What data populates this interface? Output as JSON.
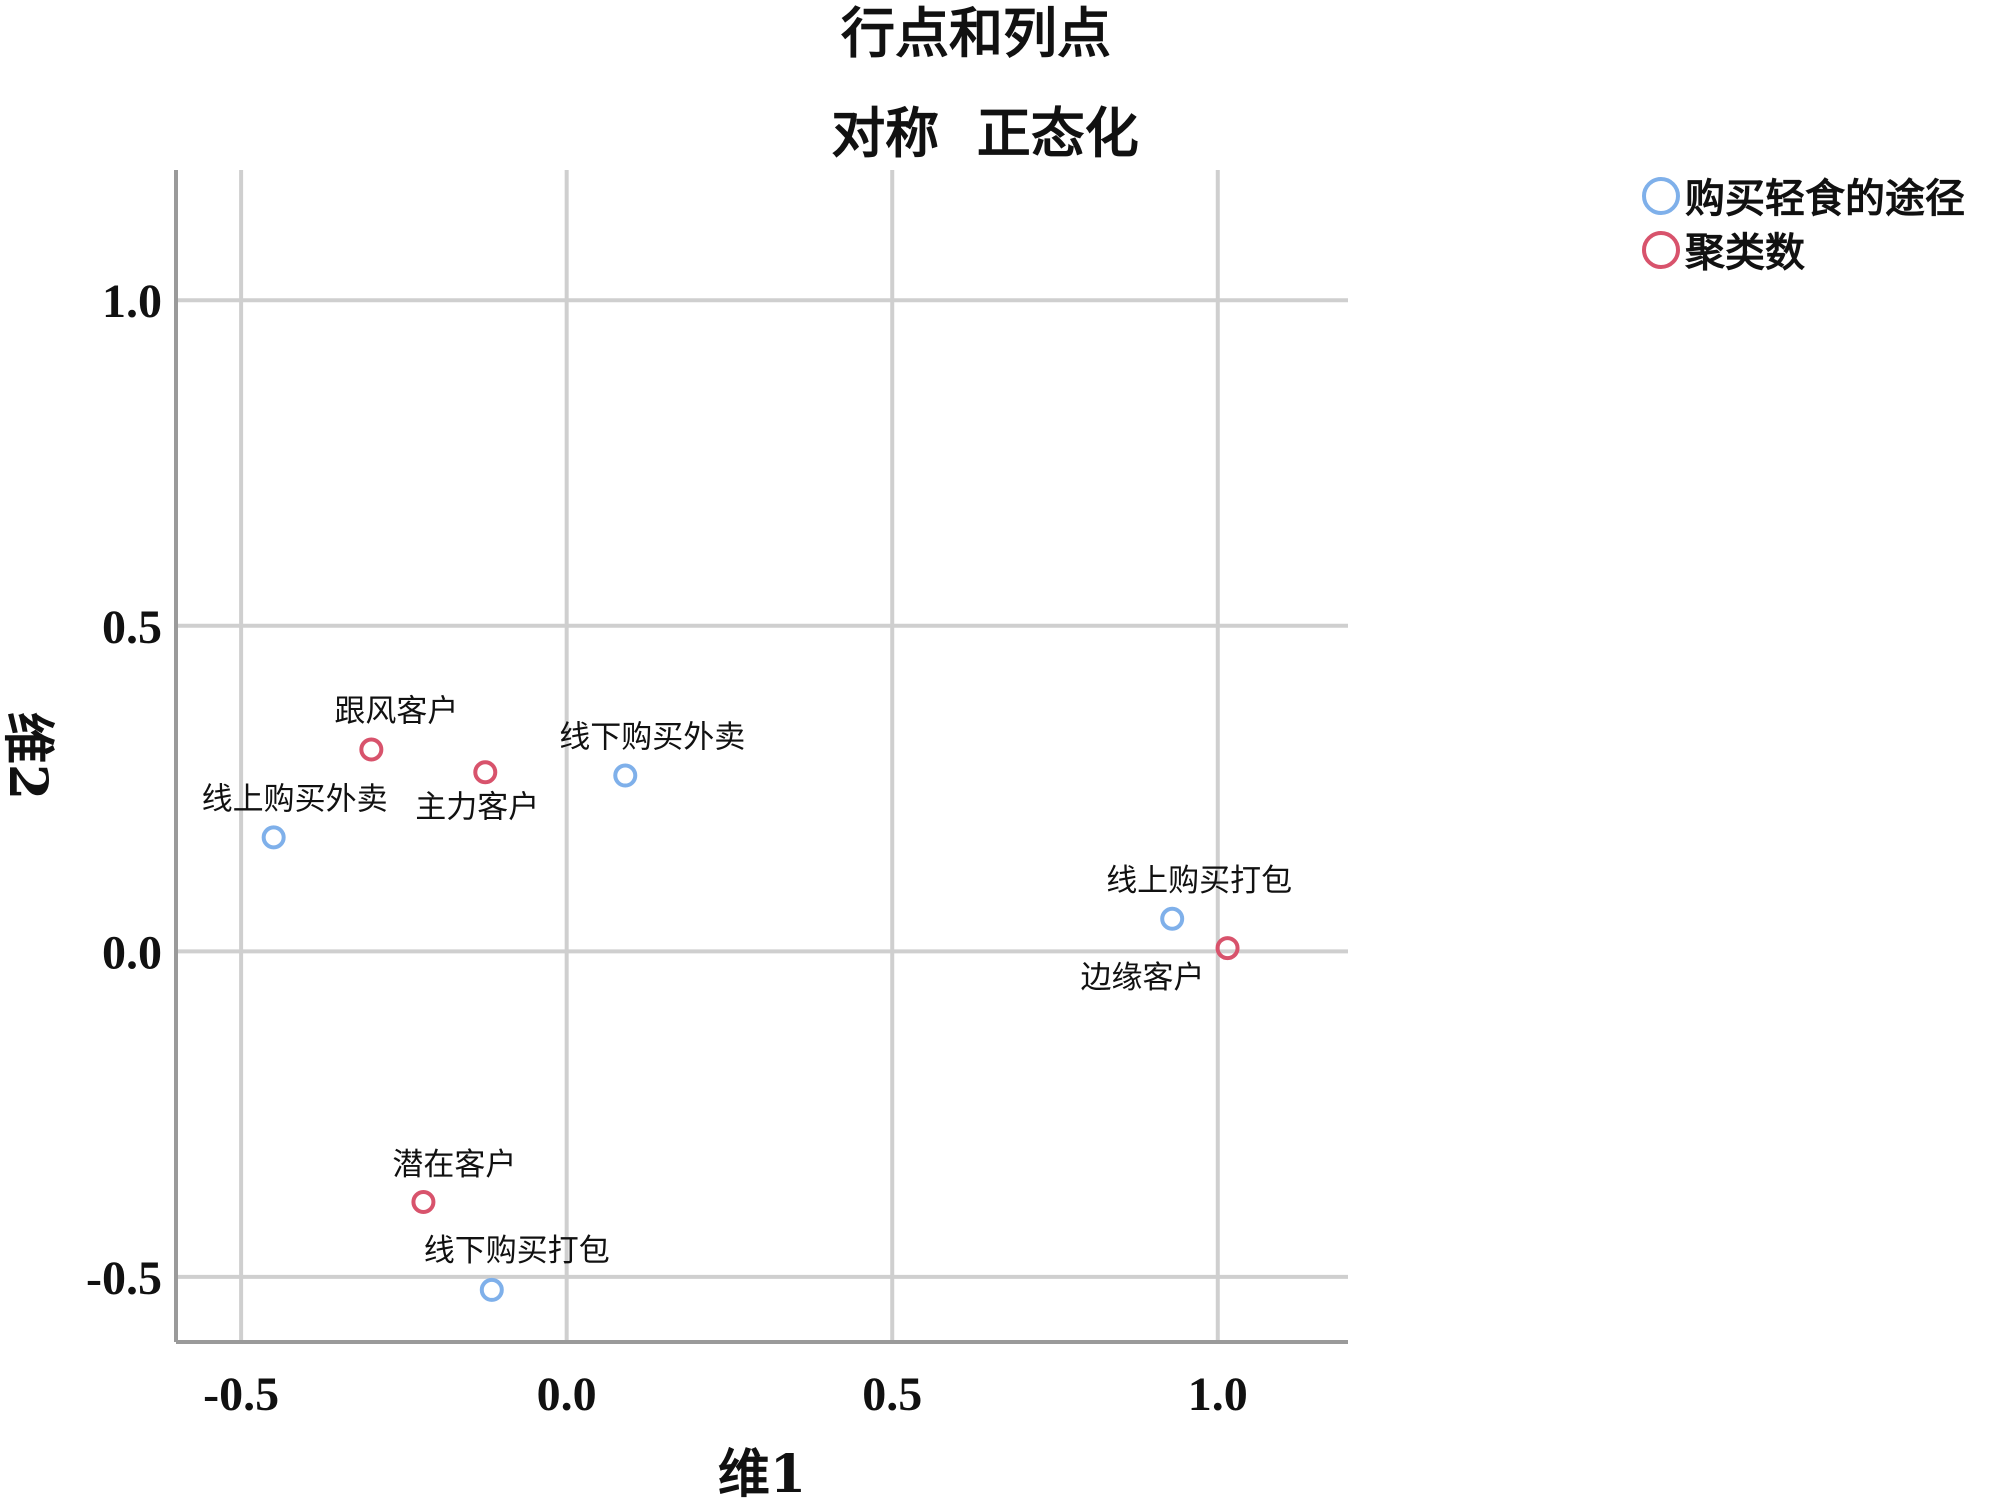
{
  "chart_data": {
    "type": "scatter",
    "title": "行点和列点",
    "subtitle": "对称  正态化",
    "xlabel": "维1",
    "ylabel": "维2",
    "xlim": [
      -0.6,
      1.2
    ],
    "ylim": [
      -0.6,
      1.2
    ],
    "xticks": [
      -0.5,
      0.0,
      0.5,
      1.0
    ],
    "yticks": [
      -0.5,
      0.0,
      0.5,
      1.0
    ],
    "xtick_labels": [
      "-0.5",
      "0.0",
      "0.5",
      "1.0"
    ],
    "ytick_labels": [
      "-0.5",
      "0.0",
      "0.5",
      "1.0"
    ],
    "grid": true,
    "legend_position": "top-right",
    "series": [
      {
        "name": "购买轻食的途径",
        "color": "#7fb0ea",
        "points": [
          {
            "label": "线下购买外卖",
            "x": 0.09,
            "y": 0.27
          },
          {
            "label": "线上购买外卖",
            "x": -0.45,
            "y": 0.175
          },
          {
            "label": "线上购买打包",
            "x": 0.93,
            "y": 0.05
          },
          {
            "label": "线下购买打包",
            "x": -0.115,
            "y": -0.52
          }
        ]
      },
      {
        "name": "聚类数",
        "color": "#d8536c",
        "points": [
          {
            "label": "跟风客户",
            "x": -0.3,
            "y": 0.31
          },
          {
            "label": "主力客户",
            "x": -0.125,
            "y": 0.275
          },
          {
            "label": "边缘客户",
            "x": 1.015,
            "y": 0.005
          },
          {
            "label": "潜在客户",
            "x": -0.22,
            "y": -0.385
          }
        ]
      }
    ]
  }
}
